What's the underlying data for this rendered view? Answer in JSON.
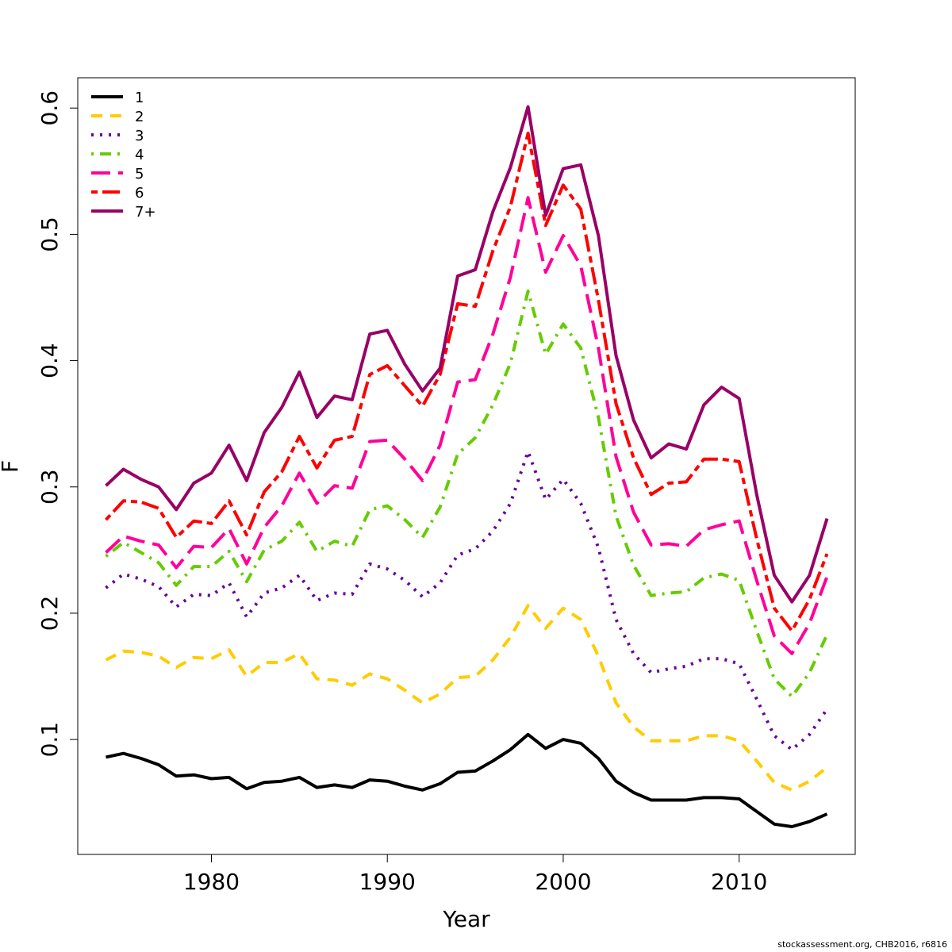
{
  "footer": "stockassessment.org, CHB2016, r6816",
  "chart_data": {
    "type": "line",
    "xlabel": "Year",
    "ylabel": "F",
    "xlim": [
      1972.4,
      2016.6
    ],
    "ylim": [
      0.009,
      0.624
    ],
    "x_ticks": [
      1980,
      1990,
      2000,
      2010
    ],
    "x_tick_labels": [
      "1980",
      "1990",
      "2000",
      "2010"
    ],
    "y_ticks": [
      0.1,
      0.2,
      0.3,
      0.4,
      0.5,
      0.6
    ],
    "y_tick_labels": [
      "0.1",
      "0.2",
      "0.3",
      "0.4",
      "0.5",
      "0.6"
    ],
    "legend_position": "top-left",
    "x": [
      1974,
      1975,
      1976,
      1977,
      1978,
      1979,
      1980,
      1981,
      1982,
      1983,
      1984,
      1985,
      1986,
      1987,
      1988,
      1989,
      1990,
      1991,
      1992,
      1993,
      1994,
      1995,
      1996,
      1997,
      1998,
      1999,
      2000,
      2001,
      2002,
      2003,
      2004,
      2005,
      2006,
      2007,
      2008,
      2009,
      2010,
      2011,
      2012,
      2013,
      2014,
      2015
    ],
    "series": [
      {
        "name": "1",
        "color": "#000000",
        "dash": "solid",
        "values": [
          0.086,
          0.089,
          0.085,
          0.08,
          0.071,
          0.072,
          0.069,
          0.07,
          0.061,
          0.066,
          0.067,
          0.07,
          0.062,
          0.064,
          0.062,
          0.068,
          0.067,
          0.063,
          0.06,
          0.065,
          0.074,
          0.075,
          0.083,
          0.092,
          0.104,
          0.093,
          0.1,
          0.097,
          0.085,
          0.067,
          0.058,
          0.052,
          0.052,
          0.052,
          0.054,
          0.054,
          0.053,
          0.043,
          0.033,
          0.031,
          0.035,
          0.041
        ]
      },
      {
        "name": "2",
        "color": "#FFCC00",
        "dash": "dashed",
        "values": [
          0.163,
          0.17,
          0.169,
          0.166,
          0.157,
          0.165,
          0.164,
          0.171,
          0.15,
          0.161,
          0.161,
          0.168,
          0.148,
          0.147,
          0.143,
          0.152,
          0.148,
          0.139,
          0.129,
          0.136,
          0.149,
          0.15,
          0.163,
          0.181,
          0.206,
          0.188,
          0.204,
          0.195,
          0.166,
          0.129,
          0.11,
          0.099,
          0.099,
          0.099,
          0.103,
          0.103,
          0.099,
          0.083,
          0.066,
          0.06,
          0.067,
          0.078
        ]
      },
      {
        "name": "3",
        "color": "#660099",
        "dash": "dotted",
        "values": [
          0.22,
          0.231,
          0.227,
          0.221,
          0.205,
          0.215,
          0.214,
          0.224,
          0.197,
          0.216,
          0.22,
          0.23,
          0.21,
          0.216,
          0.215,
          0.239,
          0.235,
          0.226,
          0.213,
          0.224,
          0.246,
          0.251,
          0.265,
          0.287,
          0.328,
          0.29,
          0.306,
          0.287,
          0.252,
          0.195,
          0.168,
          0.153,
          0.156,
          0.158,
          0.164,
          0.164,
          0.16,
          0.132,
          0.103,
          0.092,
          0.104,
          0.124
        ]
      },
      {
        "name": "4",
        "color": "#66CC00",
        "dash": "dotdash",
        "values": [
          0.245,
          0.256,
          0.248,
          0.24,
          0.222,
          0.237,
          0.237,
          0.249,
          0.225,
          0.25,
          0.257,
          0.272,
          0.249,
          0.257,
          0.253,
          0.282,
          0.285,
          0.274,
          0.26,
          0.284,
          0.326,
          0.339,
          0.365,
          0.398,
          0.455,
          0.405,
          0.429,
          0.41,
          0.355,
          0.277,
          0.238,
          0.214,
          0.216,
          0.217,
          0.228,
          0.231,
          0.226,
          0.186,
          0.148,
          0.134,
          0.153,
          0.183
        ]
      },
      {
        "name": "5",
        "color": "#FF0099",
        "dash": "longdash",
        "values": [
          0.248,
          0.261,
          0.257,
          0.254,
          0.236,
          0.253,
          0.252,
          0.267,
          0.239,
          0.268,
          0.285,
          0.311,
          0.287,
          0.301,
          0.299,
          0.336,
          0.337,
          0.322,
          0.305,
          0.333,
          0.383,
          0.385,
          0.421,
          0.466,
          0.529,
          0.47,
          0.499,
          0.475,
          0.41,
          0.324,
          0.28,
          0.254,
          0.255,
          0.253,
          0.266,
          0.27,
          0.273,
          0.226,
          0.182,
          0.168,
          0.192,
          0.229
        ]
      },
      {
        "name": "6",
        "color": "#FF0000",
        "dash": "twodash",
        "values": [
          0.274,
          0.289,
          0.288,
          0.283,
          0.26,
          0.273,
          0.271,
          0.289,
          0.262,
          0.296,
          0.312,
          0.34,
          0.315,
          0.337,
          0.34,
          0.389,
          0.396,
          0.38,
          0.364,
          0.389,
          0.445,
          0.443,
          0.487,
          0.522,
          0.58,
          0.507,
          0.539,
          0.52,
          0.448,
          0.366,
          0.323,
          0.294,
          0.303,
          0.304,
          0.322,
          0.322,
          0.32,
          0.259,
          0.204,
          0.186,
          0.211,
          0.247
        ]
      },
      {
        "name": "7+",
        "color": "#990066",
        "dash": "solid",
        "values": [
          0.301,
          0.314,
          0.306,
          0.3,
          0.282,
          0.303,
          0.311,
          0.333,
          0.305,
          0.343,
          0.363,
          0.391,
          0.355,
          0.372,
          0.369,
          0.421,
          0.424,
          0.397,
          0.376,
          0.394,
          0.467,
          0.472,
          0.518,
          0.553,
          0.601,
          0.515,
          0.552,
          0.555,
          0.499,
          0.404,
          0.353,
          0.323,
          0.334,
          0.33,
          0.365,
          0.379,
          0.37,
          0.294,
          0.23,
          0.209,
          0.23,
          0.275
        ]
      }
    ]
  }
}
